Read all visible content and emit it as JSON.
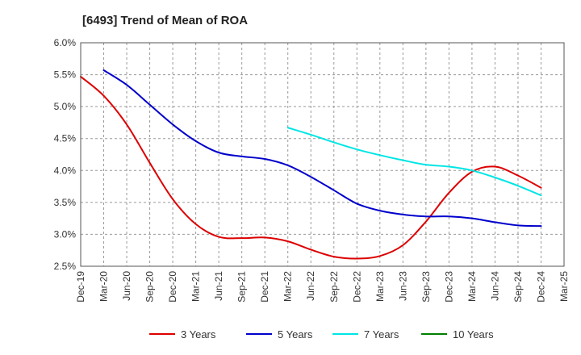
{
  "chart_data": {
    "type": "line",
    "title": "[6493]  Trend of Mean of ROA",
    "xlabel": "",
    "ylabel": "",
    "x_ticks": [
      "Dec-19",
      "Mar-20",
      "Jun-20",
      "Sep-20",
      "Dec-20",
      "Mar-21",
      "Jun-21",
      "Sep-21",
      "Dec-21",
      "Mar-22",
      "Jun-22",
      "Sep-22",
      "Dec-22",
      "Mar-23",
      "Jun-23",
      "Sep-23",
      "Dec-23",
      "Mar-24",
      "Jun-24",
      "Sep-24",
      "Dec-24",
      "Mar-25"
    ],
    "y_ticks": [
      "2.5%",
      "3.0%",
      "3.5%",
      "4.0%",
      "4.5%",
      "5.0%",
      "5.5%",
      "6.0%"
    ],
    "ylim": [
      2.5,
      6.0
    ],
    "y_unit": "%",
    "grid": true,
    "legend_position": "bottom",
    "series": [
      {
        "name": "3 Years",
        "color": "#dd0000",
        "x": [
          "Dec-19",
          "Mar-20",
          "Jun-20",
          "Sep-20",
          "Dec-20",
          "Mar-21",
          "Jun-21",
          "Sep-21",
          "Dec-21",
          "Mar-22",
          "Jun-22",
          "Sep-22",
          "Dec-22",
          "Mar-23",
          "Jun-23",
          "Sep-23",
          "Dec-23",
          "Mar-24",
          "Jun-24",
          "Sep-24",
          "Dec-24"
        ],
        "values": [
          5.47,
          5.17,
          4.72,
          4.12,
          3.55,
          3.16,
          2.96,
          2.94,
          2.95,
          2.89,
          2.76,
          2.65,
          2.62,
          2.66,
          2.83,
          3.2,
          3.65,
          3.98,
          4.06,
          3.92,
          3.73
        ]
      },
      {
        "name": "5 Years",
        "color": "#0000cc",
        "x": [
          "Mar-20",
          "Jun-20",
          "Sep-20",
          "Dec-20",
          "Mar-21",
          "Jun-21",
          "Sep-21",
          "Dec-21",
          "Mar-22",
          "Jun-22",
          "Sep-22",
          "Dec-22",
          "Mar-23",
          "Jun-23",
          "Sep-23",
          "Dec-23",
          "Mar-24",
          "Jun-24",
          "Sep-24",
          "Dec-24"
        ],
        "values": [
          5.57,
          5.34,
          5.03,
          4.72,
          4.46,
          4.28,
          4.22,
          4.18,
          4.08,
          3.9,
          3.69,
          3.48,
          3.37,
          3.31,
          3.28,
          3.28,
          3.25,
          3.19,
          3.14,
          3.13
        ]
      },
      {
        "name": "7 Years",
        "color": "#00e5e5",
        "x": [
          "Mar-22",
          "Jun-22",
          "Sep-22",
          "Dec-22",
          "Mar-23",
          "Jun-23",
          "Sep-23",
          "Dec-23",
          "Mar-24",
          "Jun-24",
          "Sep-24",
          "Dec-24"
        ],
        "values": [
          4.67,
          4.56,
          4.44,
          4.33,
          4.24,
          4.16,
          4.09,
          4.06,
          4.0,
          3.89,
          3.76,
          3.61
        ]
      },
      {
        "name": "10 Years",
        "color": "#008000",
        "x": [],
        "values": []
      }
    ]
  }
}
